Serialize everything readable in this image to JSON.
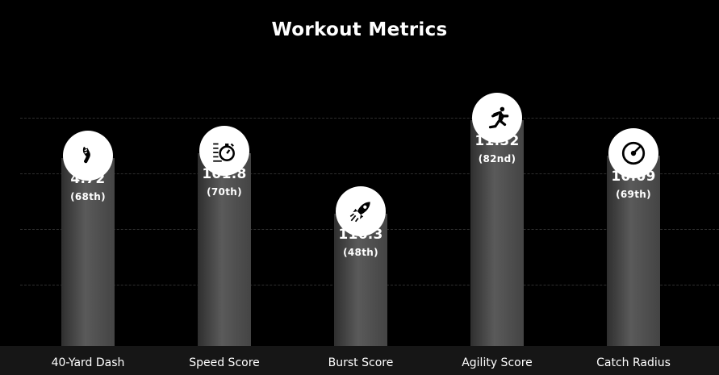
{
  "chart_data": {
    "type": "bar",
    "title": "Workout Metrics",
    "categories": [
      "40-Yard Dash",
      "Speed Score",
      "Burst Score",
      "Agility Score",
      "Catch Radius"
    ],
    "values": [
      4.72,
      101.8,
      116.3,
      11.32,
      10.09
    ],
    "value_labels": [
      "4.72",
      "101.8",
      "116.3",
      "11.32",
      "10.09"
    ],
    "percentile_labels": [
      "(68th)",
      "(70th)",
      "(48th)",
      "(82nd)",
      "(69th)"
    ],
    "percentiles": [
      68,
      70,
      48,
      82,
      69
    ],
    "icons": [
      "shoe-icon",
      "stopwatch-icon",
      "rocket-icon",
      "runner-icon",
      "target-icon"
    ],
    "ylim": [
      0,
      100
    ],
    "grid": true,
    "colors": {
      "background": "#000000",
      "bar": "#4a4a4a",
      "text": "#ffffff",
      "grid": "#2e2e2e"
    }
  }
}
